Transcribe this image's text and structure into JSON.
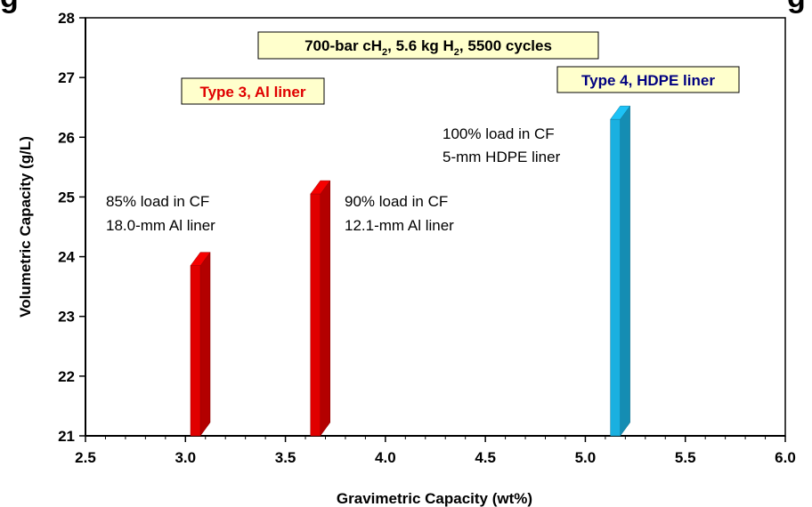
{
  "header_fragment": {
    "left": "g",
    "right": "g"
  },
  "chart_data": {
    "type": "bar",
    "xlabel": "Gravimetric Capacity (wt%)",
    "ylabel": "Volumetric Capacity (g/L)",
    "xlim": [
      2.5,
      6.0
    ],
    "ylim": [
      21,
      28
    ],
    "xticks": [
      "2.5",
      "3.0",
      "3.5",
      "4.0",
      "4.5",
      "5.0",
      "5.5",
      "6.0"
    ],
    "yticks": [
      "21",
      "22",
      "23",
      "24",
      "25",
      "26",
      "27",
      "28"
    ],
    "grid": false,
    "bars": [
      {
        "x": 3.05,
        "y": 23.85,
        "color": "#e00000"
      },
      {
        "x": 3.65,
        "y": 25.05,
        "color": "#e00000"
      },
      {
        "x": 5.15,
        "y": 26.3,
        "color": "#1ab0e0"
      }
    ],
    "annotations": [
      {
        "lines": [
          "85% load in CF",
          "18.0-mm Al liner"
        ]
      },
      {
        "lines": [
          "90% load in CF",
          "12.1-mm Al liner"
        ]
      },
      {
        "lines": [
          "100% load in CF",
          "5-mm HDPE liner"
        ]
      }
    ],
    "labels": [
      {
        "text": "Type 3, Al liner",
        "color": "#e00000",
        "fill": "#ffffcc"
      },
      {
        "text": "Type 4, HDPE liner",
        "color": "#000080",
        "fill": "#ffffcc"
      }
    ],
    "conditions_box": {
      "prefix": "700-bar cH",
      "sub1": "2",
      "mid": ", 5.6 kg H",
      "sub2": "2",
      "suffix": ", 5500 cycles"
    }
  }
}
